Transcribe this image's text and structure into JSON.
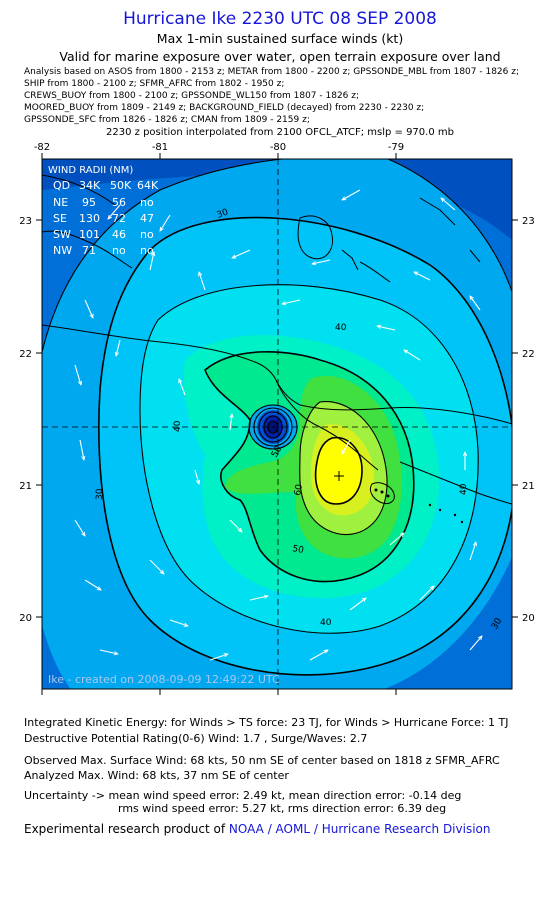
{
  "header": {
    "title": "Hurricane Ike 2230 UTC 08 SEP 2008",
    "subtitle1": "Max 1-min sustained surface winds (kt)",
    "subtitle2": "Valid for marine exposure over water, open terrain exposure over land",
    "analysis_lines": [
      "Analysis based on  ASOS from 1800 - 2153 z;  METAR from 1800 - 2200 z;  GPSSONDE_MBL from 1807 - 1826 z;",
      "SHIP from 1800 - 2100 z;  SFMR_AFRC from 1802 - 1950 z;",
      "CREWS_BUOY from 1800 - 2100 z;  GPSSONDE_WL150 from 1807 - 1826 z;",
      "MOORED_BUOY from 1809 - 2149 z;  BACKGROUND_FIELD (decayed) from 2230 - 2230 z;",
      "GPSSONDE_SFC from 1826 - 1826 z;  CMAN from 1809 - 2159 z;"
    ],
    "position_line": "2230 z position interpolated from 2100 OFCL_ATCF; mslp = 970.0 mb"
  },
  "map": {
    "lon_ticks": [
      "-82",
      "-81",
      "-80",
      "-79"
    ],
    "lat_ticks": [
      "23",
      "22",
      "21",
      "20"
    ],
    "contour_labels": [
      "30",
      "40",
      "40",
      "50",
      "60",
      "30",
      "40",
      "30",
      "40",
      "50"
    ],
    "watermark": "Ike - created on 2008-09-09 12:49:22 UTC",
    "wind_radii": {
      "title": "WIND RADII (NM)",
      "header": [
        "QD",
        "34K",
        "50K",
        "64K"
      ],
      "rows": [
        [
          "NE",
          "95",
          "56",
          "no"
        ],
        [
          "SE",
          "130",
          "72",
          "47"
        ],
        [
          "SW",
          "101",
          "46",
          "no"
        ],
        [
          "NW",
          "71",
          "no",
          "no"
        ]
      ]
    },
    "colors": {
      "ts_light": "#00a8f0",
      "ts_30": "#00c4f8",
      "band_40": "#00e0f0",
      "band_45": "#00f0c8",
      "band_50": "#00e890",
      "band_55": "#40e040",
      "band_60": "#a0f040",
      "band_64": "#d8f020",
      "band_max": "#ffff00",
      "outer": "#0070d8",
      "eye": "#0020a8"
    }
  },
  "footer": {
    "ike_line": "Integrated Kinetic Energy:  for Winds > TS force: 23 TJ,  for Winds > Hurricane Force: 1 TJ",
    "dpr_line": "Destructive Potential Rating(0-6)   Wind: 1.7 , Surge/Waves: 2.7",
    "obs_line": "Observed Max. Surface Wind: 68 kts, 50 nm SE of center based on 1818 z SFMR_AFRC",
    "analyzed_line": "Analyzed Max. Wind: 68 kts, 37 nm SE of center",
    "uncert1": "Uncertainty -> mean wind speed error: 2.49 kt,   mean direction error:  -0.14 deg",
    "uncert2": "rms wind speed error: 5.27 kt,   rms direction error: 6.39 deg",
    "credit_prefix": "Experimental research product of ",
    "credit_org": "NOAA / AOML / Hurricane Research Division"
  }
}
